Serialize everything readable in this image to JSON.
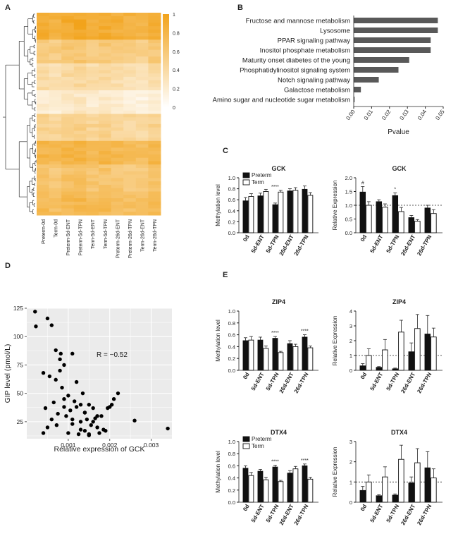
{
  "panel_labels": [
    "A",
    "B",
    "C",
    "D",
    "E"
  ],
  "colors": {
    "heat_high": "#f2a31b",
    "heat_low": "#ffffff",
    "bar_gray": "#595959",
    "preterm": "#111111",
    "term": "#ffffff",
    "scatter_bg": "#ebebeb",
    "point": "#000000"
  },
  "chart_data": [
    {
      "id": "A",
      "type": "heatmap",
      "columns": [
        "Preterm-0d",
        "Term-0d",
        "Preterm-5d-ENT",
        "Preterm-5d-TPN",
        "Term-5d-ENT",
        "Term-5d-TPN",
        "Preterm-26d-ENT",
        "Preterm-26d-TPN",
        "Term-26d-ENT",
        "Term-26d-TPN"
      ],
      "colorbar_ticks": [
        "1",
        "0.8",
        "0.6",
        "0.4",
        "0.2",
        "0"
      ],
      "colorbar_range": [
        0,
        1
      ],
      "row_clusters": [
        {
          "level": 0.85
        },
        {
          "level": 0.55
        },
        {
          "level": 0.35
        },
        {
          "level": 0.18
        },
        {
          "level": 0.45
        },
        {
          "level": 0.75
        },
        {
          "level": 0.6
        },
        {
          "level": 0.7
        }
      ]
    },
    {
      "id": "B",
      "type": "bar",
      "orientation": "horizontal",
      "categories": [
        "Fructose and mannose metabolism",
        "Lysosome",
        "PPAR signaling pathway",
        "Inositol phosphate metabolism",
        "Maturity onset diabetes of the young",
        "Phosphatidylinositol signaling system",
        "Notch signaling pathway",
        "Galactose metabolism",
        "Amino sugar and nucleotide sugar metabolism"
      ],
      "values": [
        0.047,
        0.047,
        0.043,
        0.043,
        0.031,
        0.025,
        0.014,
        0.004,
        0.0005
      ],
      "xlabel": "Pvalue",
      "xlim": [
        0,
        0.05
      ],
      "xticks": [
        "0.00",
        "0.01",
        "0.02",
        "0.03",
        "0.04",
        "0.05"
      ]
    },
    {
      "id": "C1",
      "type": "bar",
      "title": "GCK",
      "ylabel": "Methylation level",
      "ylim": [
        0,
        1.0
      ],
      "yticks": [
        "0.0",
        "0.2",
        "0.4",
        "0.6",
        "0.8",
        "1.0"
      ],
      "categories": [
        "0d",
        "5d-ENT",
        "5d-TPN",
        "26d-ENT",
        "26d-TPN"
      ],
      "series": [
        {
          "name": "Preterm",
          "values": [
            0.58,
            0.67,
            0.51,
            0.76,
            0.79
          ],
          "errors": [
            0.06,
            0.05,
            0.03,
            0.04,
            0.06
          ]
        },
        {
          "name": "Term",
          "values": [
            0.66,
            0.75,
            0.74,
            0.77,
            0.68
          ],
          "errors": [
            0.05,
            0.04,
            0.03,
            0.05,
            0.05
          ]
        }
      ],
      "annotations": [
        {
          "category": "5d-TPN",
          "text": "****"
        }
      ]
    },
    {
      "id": "C2",
      "type": "bar",
      "title": "GCK",
      "ylabel": "Relative Expression",
      "ylim": [
        0,
        2.0
      ],
      "yticks": [
        "0.0",
        "0.5",
        "1.0",
        "1.5",
        "2.0"
      ],
      "reference_line": 1.0,
      "categories": [
        "0d",
        "5d-ENT",
        "5d-TPN",
        "26d-ENT",
        "26d-TPN"
      ],
      "series": [
        {
          "values": [
            1.48,
            1.13,
            1.35,
            0.55,
            0.9
          ],
          "errors": [
            0.2,
            0.07,
            0.1,
            0.08,
            0.1
          ]
        },
        {
          "values": [
            1.0,
            0.93,
            0.77,
            0.42,
            0.7
          ],
          "errors": [
            0.13,
            0.12,
            0.15,
            0.06,
            0.14
          ]
        }
      ],
      "annotations": [
        {
          "category": "0d",
          "text": "#"
        },
        {
          "category": "5d-TPN",
          "text": "*"
        }
      ]
    },
    {
      "id": "D",
      "type": "scatter",
      "xlabel": "Relative expression of GCK",
      "ylabel": "GIP level (pmol/L)",
      "xlim": [
        0,
        0.0035
      ],
      "ylim": [
        10,
        125
      ],
      "xticks": [
        "0.001",
        "0.002",
        "0.003"
      ],
      "yticks": [
        "25",
        "50",
        "75",
        "100",
        "125"
      ],
      "annotation": "R = −0.52",
      "x": [
        0.0002,
        0.00022,
        0.0004,
        0.00045,
        0.0005,
        0.00055,
        0.0006,
        0.00065,
        0.0007,
        0.00072,
        0.00075,
        0.0008,
        0.00082,
        0.00085,
        0.0009,
        0.0009,
        0.00095,
        0.001,
        0.001,
        0.00105,
        0.0011,
        0.0011,
        0.00115,
        0.0012,
        0.00125,
        0.0013,
        0.0013,
        0.00135,
        0.0014,
        0.0014,
        0.00145,
        0.0015,
        0.0015,
        0.0016,
        0.0016,
        0.0017,
        0.0018,
        0.0019,
        0.002,
        0.0021,
        0.0022,
        0.0026,
        0.0034,
        0.0004,
        0.0006,
        0.0008,
        0.0012,
        0.0014,
        0.00155,
        0.00165,
        0.00175,
        0.00185,
        0.0005,
        0.0007,
        0.0009,
        0.0011,
        0.0013,
        0.0015,
        0.0017,
        0.00195,
        0.00205
      ],
      "y": [
        122,
        109,
        68,
        37,
        116,
        65,
        110,
        42,
        88,
        22,
        32,
        80,
        85,
        55,
        38,
        75,
        30,
        48,
        15,
        35,
        85,
        27,
        43,
        38,
        14,
        40,
        25,
        50,
        33,
        17,
        27,
        40,
        13,
        25,
        37,
        30,
        30,
        17,
        38,
        45,
        50,
        26,
        19,
        15,
        27,
        70,
        60,
        33,
        22,
        28,
        15,
        18,
        20,
        62,
        45,
        23,
        18,
        14,
        20,
        37,
        40
      ]
    },
    {
      "id": "E1",
      "type": "bar",
      "title": "ZIP4",
      "ylabel": "Methylation level",
      "ylim": [
        0,
        1.0
      ],
      "yticks": [
        "0.0",
        "0.2",
        "0.4",
        "0.6",
        "0.8",
        "1.0"
      ],
      "categories": [
        "0d",
        "5d-ENT",
        "5d-TPN",
        "26d-ENT",
        "26d-TPN"
      ],
      "series": [
        {
          "name": "Preterm",
          "values": [
            0.5,
            0.51,
            0.54,
            0.45,
            0.56
          ],
          "errors": [
            0.05,
            0.05,
            0.03,
            0.05,
            0.04
          ]
        },
        {
          "name": "Term",
          "values": [
            0.51,
            0.37,
            0.3,
            0.4,
            0.38
          ],
          "errors": [
            0.06,
            0.04,
            0.02,
            0.04,
            0.03
          ]
        }
      ],
      "annotations": [
        {
          "category": "5d-TPN",
          "text": "****"
        },
        {
          "category": "26d-TPN",
          "text": "****"
        }
      ]
    },
    {
      "id": "E2",
      "type": "bar",
      "title": "ZIP4",
      "ylabel": "Relative Expression",
      "ylim": [
        0,
        4
      ],
      "yticks": [
        "0",
        "1",
        "2",
        "3",
        "4"
      ],
      "reference_line": 1,
      "categories": [
        "0d",
        "5d-ENT",
        "5d-TPN",
        "26d-ENT",
        "26d-TPN"
      ],
      "series": [
        {
          "values": [
            0.3,
            0.2,
            0.1,
            1.25,
            2.45
          ],
          "errors": [
            0.15,
            0.05,
            0.05,
            0.6,
            1.25
          ]
        },
        {
          "values": [
            1.0,
            1.38,
            2.58,
            2.82,
            2.25
          ],
          "errors": [
            0.45,
            0.7,
            0.8,
            0.95,
            0.6
          ]
        }
      ]
    },
    {
      "id": "E3",
      "type": "bar",
      "title": "DTX4",
      "ylabel": "Methylation level",
      "ylim": [
        0,
        1.0
      ],
      "yticks": [
        "0.0",
        "0.2",
        "0.4",
        "0.6",
        "0.8",
        "1.0"
      ],
      "categories": [
        "0d",
        "5d-ENT",
        "5d-TPN",
        "26d-ENT",
        "26d-TPN"
      ],
      "series": [
        {
          "name": "Preterm",
          "values": [
            0.56,
            0.51,
            0.58,
            0.48,
            0.6
          ],
          "errors": [
            0.04,
            0.03,
            0.03,
            0.04,
            0.03
          ]
        },
        {
          "name": "Term",
          "values": [
            0.44,
            0.37,
            0.34,
            0.55,
            0.38
          ],
          "errors": [
            0.05,
            0.04,
            0.02,
            0.04,
            0.03
          ]
        }
      ],
      "annotations": [
        {
          "category": "5d-TPN",
          "text": "****"
        },
        {
          "category": "26d-TPN",
          "text": "****"
        }
      ]
    },
    {
      "id": "E4",
      "type": "bar",
      "title": "DTX4",
      "ylabel": "Relative Expression",
      "ylim": [
        0,
        3
      ],
      "yticks": [
        "0",
        "1",
        "2",
        "3"
      ],
      "reference_line": 1,
      "categories": [
        "0d",
        "5d-ENT",
        "5d-TPN",
        "26d-ENT",
        "26d-TPN"
      ],
      "series": [
        {
          "values": [
            0.58,
            0.32,
            0.35,
            0.95,
            1.7
          ],
          "errors": [
            0.2,
            0.05,
            0.06,
            0.3,
            0.8
          ]
        },
        {
          "values": [
            1.0,
            1.25,
            2.12,
            1.95,
            1.2
          ],
          "errors": [
            0.35,
            0.5,
            0.7,
            0.7,
            0.45
          ]
        }
      ]
    }
  ]
}
